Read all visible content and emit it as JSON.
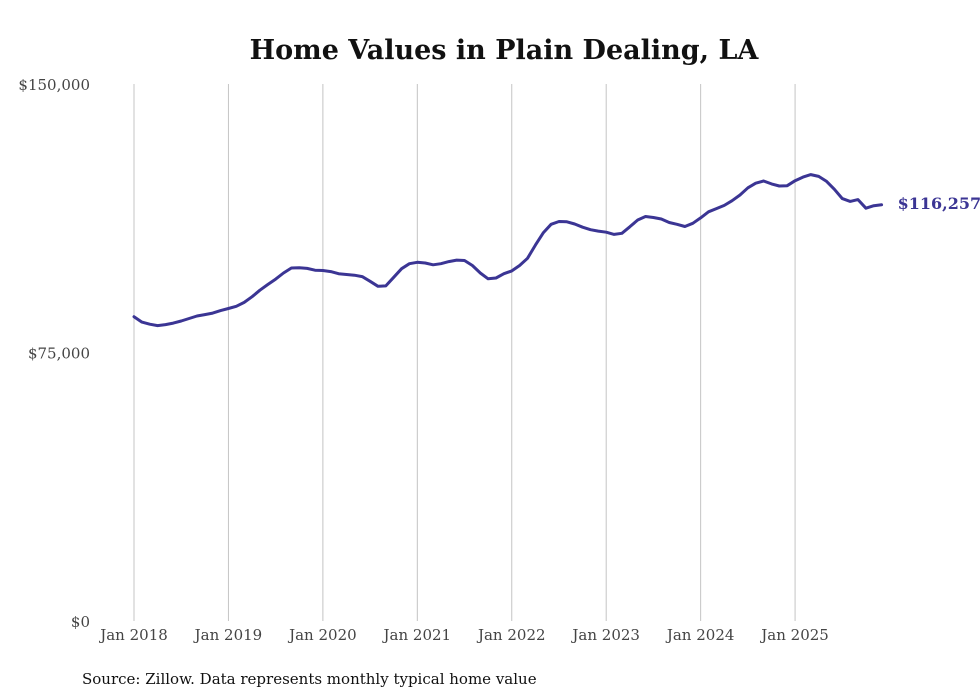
{
  "chart_data": {
    "type": "line",
    "title": "Home Values in Plain Dealing, LA",
    "xlabel": "",
    "ylabel": "",
    "ylim": [
      0,
      150000
    ],
    "grid": "vertical",
    "yticks": [
      {
        "value": 150000,
        "label": "$150,000"
      },
      {
        "value": 75000,
        "label": "$75,000"
      },
      {
        "value": 0,
        "label": "$0"
      }
    ],
    "xticks": [
      {
        "index": 0,
        "label": "Jan 2018"
      },
      {
        "index": 12,
        "label": "Jan 2019"
      },
      {
        "index": 24,
        "label": "Jan 2020"
      },
      {
        "index": 36,
        "label": "Jan 2021"
      },
      {
        "index": 48,
        "label": "Jan 2022"
      },
      {
        "index": 60,
        "label": "Jan 2023"
      },
      {
        "index": 72,
        "label": "Jan 2024"
      },
      {
        "index": 84,
        "label": "Jan 2025"
      }
    ],
    "series": [
      {
        "name": "Typical home value",
        "color": "#3b3594",
        "start": "Jan 2018",
        "frequency": "monthly",
        "values": [
          85000,
          83500,
          82900,
          82500,
          82800,
          83200,
          83800,
          84500,
          85200,
          85600,
          86000,
          86700,
          87300,
          87900,
          89000,
          90600,
          92400,
          94000,
          95500,
          97200,
          98600,
          98700,
          98500,
          98000,
          97900,
          97600,
          97000,
          96800,
          96600,
          96200,
          94900,
          93500,
          93600,
          96000,
          98400,
          99800,
          100200,
          100000,
          99500,
          99800,
          100400,
          100800,
          100700,
          99300,
          97200,
          95600,
          95800,
          97000,
          97800,
          99300,
          101300,
          105000,
          108400,
          110800,
          111600,
          111500,
          110900,
          110000,
          109300,
          108900,
          108600,
          108000,
          108300,
          110100,
          112000,
          113000,
          112700,
          112300,
          111300,
          110800,
          110200,
          111100,
          112600,
          114300,
          115200,
          116100,
          117400,
          119000,
          121000,
          122300,
          122900,
          122100,
          121500,
          121600,
          123000,
          124000,
          124700,
          124200,
          122800,
          120600,
          118000,
          117200,
          117700,
          115300,
          116000,
          116257
        ]
      }
    ],
    "end_label": "$116,257"
  },
  "source_note": "Source: Zillow. Data represents monthly typical home value"
}
